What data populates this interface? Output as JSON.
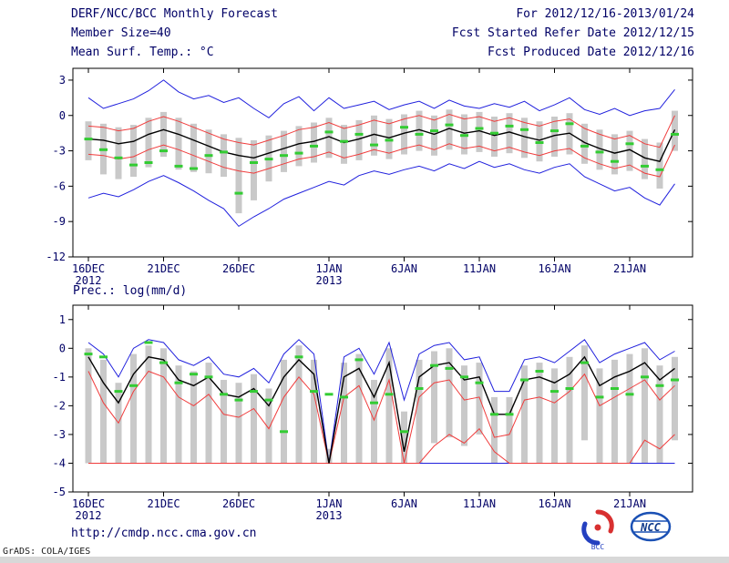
{
  "page": {
    "background": "#ffffff",
    "text_color": "#000066"
  },
  "header": {
    "title": "DERF/NCC/BCC Monthly Forecast",
    "member_size": "Member Size=40",
    "for_range": "For 2012/12/16-2013/01/24",
    "refer_date": "Fcst Started Refer Date 2012/12/15",
    "produced_date": "Fcst Produced Date 2012/12/16"
  },
  "footer": {
    "url": "http://cmdp.ncc.cma.gov.cn",
    "grads_credit": "GrADS: COLA/IGES",
    "logos": [
      {
        "name": "bcc-logo",
        "label": "BCC"
      },
      {
        "name": "ncc-logo",
        "label": "NCC"
      }
    ]
  },
  "colors": {
    "ensemble_max_min": "#2020dd",
    "bounds": "#f03c3c",
    "mean": "#000000",
    "observation": "#33cc33",
    "spread_bar": "#c9c9c9",
    "frame": "#000000"
  },
  "chart_data": [
    {
      "type": "line",
      "title": "Mean Surf. Temp.: °C",
      "x_start": "16DEC2012",
      "x_end": "24JAN2013",
      "n_points": 40,
      "ylim": [
        -12,
        4
      ],
      "y_ticks": [
        3,
        0,
        -3,
        -6,
        -9,
        -12
      ],
      "x_ticks": [
        {
          "i": 0,
          "label": "16DEC",
          "year": "2012"
        },
        {
          "i": 5,
          "label": "21DEC"
        },
        {
          "i": 10,
          "label": "26DEC"
        },
        {
          "i": 16,
          "label": "1JAN",
          "year": "2013"
        },
        {
          "i": 21,
          "label": "6JAN"
        },
        {
          "i": 26,
          "label": "11JAN"
        },
        {
          "i": 31,
          "label": "16JAN"
        },
        {
          "i": 36,
          "label": "21JAN"
        }
      ],
      "series": [
        {
          "name": "ensemble-max",
          "color": "#2020dd",
          "width": 1,
          "values": [
            1.5,
            0.6,
            1.0,
            1.4,
            2.1,
            3.0,
            2.0,
            1.4,
            1.7,
            1.1,
            1.5,
            0.6,
            -0.2,
            1.0,
            1.6,
            0.4,
            1.5,
            0.6,
            0.9,
            1.2,
            0.5,
            0.9,
            1.2,
            0.6,
            1.3,
            0.8,
            0.6,
            1.0,
            0.7,
            1.2,
            0.4,
            0.9,
            1.5,
            0.5,
            0.1,
            0.6,
            0.0,
            0.4,
            0.6,
            2.2
          ]
        },
        {
          "name": "ensemble-min",
          "color": "#2020dd",
          "width": 1,
          "values": [
            -7.0,
            -6.6,
            -6.9,
            -6.3,
            -5.6,
            -5.1,
            -5.7,
            -6.4,
            -7.2,
            -7.9,
            -9.4,
            -8.6,
            -7.9,
            -7.1,
            -6.6,
            -6.1,
            -5.6,
            -5.9,
            -5.1,
            -4.7,
            -5.0,
            -4.6,
            -4.3,
            -4.7,
            -4.1,
            -4.5,
            -3.9,
            -4.4,
            -4.1,
            -4.6,
            -4.9,
            -4.4,
            -4.1,
            -5.2,
            -5.8,
            -6.4,
            -6.1,
            -7.0,
            -7.6,
            -5.8
          ]
        },
        {
          "name": "upper-bound",
          "color": "#f03c3c",
          "width": 1,
          "values": [
            -0.9,
            -1.0,
            -1.3,
            -1.1,
            -0.5,
            -0.1,
            -0.5,
            -1.0,
            -1.5,
            -2.0,
            -2.3,
            -2.5,
            -2.1,
            -1.7,
            -1.2,
            -1.0,
            -0.6,
            -1.1,
            -0.8,
            -0.4,
            -0.7,
            -0.3,
            0.0,
            -0.4,
            0.1,
            -0.3,
            -0.1,
            -0.5,
            -0.2,
            -0.6,
            -0.9,
            -0.5,
            -0.3,
            -1.1,
            -1.6,
            -2.0,
            -1.7,
            -2.4,
            -2.7,
            0.0
          ]
        },
        {
          "name": "lower-bound",
          "color": "#f03c3c",
          "width": 1,
          "values": [
            -3.3,
            -3.4,
            -3.7,
            -3.5,
            -2.9,
            -2.5,
            -2.9,
            -3.4,
            -3.9,
            -4.4,
            -4.7,
            -4.9,
            -4.5,
            -4.1,
            -3.7,
            -3.5,
            -3.1,
            -3.6,
            -3.3,
            -2.9,
            -3.2,
            -2.8,
            -2.5,
            -2.9,
            -2.4,
            -2.8,
            -2.6,
            -3.0,
            -2.7,
            -3.1,
            -3.4,
            -3.0,
            -2.8,
            -3.6,
            -4.1,
            -4.5,
            -4.2,
            -4.9,
            -5.2,
            -2.5
          ]
        },
        {
          "name": "ensemble-mean",
          "color": "#000000",
          "width": 1.4,
          "values": [
            -2.0,
            -2.1,
            -2.4,
            -2.2,
            -1.6,
            -1.2,
            -1.6,
            -2.1,
            -2.6,
            -3.1,
            -3.4,
            -3.6,
            -3.2,
            -2.8,
            -2.4,
            -2.2,
            -1.8,
            -2.3,
            -2.0,
            -1.6,
            -1.9,
            -1.5,
            -1.2,
            -1.6,
            -1.1,
            -1.5,
            -1.3,
            -1.7,
            -1.4,
            -1.8,
            -2.1,
            -1.7,
            -1.5,
            -2.3,
            -2.8,
            -3.2,
            -2.9,
            -3.6,
            -3.9,
            -1.2
          ]
        }
      ],
      "obs": {
        "name": "observation",
        "color": "#33cc33",
        "values": [
          -2.0,
          -2.9,
          -3.6,
          -4.2,
          -4.0,
          -3.0,
          -4.3,
          -4.5,
          -3.4,
          -3.1,
          -6.6,
          -4.0,
          -3.7,
          -3.4,
          -3.2,
          -2.6,
          -1.4,
          -2.2,
          -1.6,
          -2.5,
          -2.1,
          -1.0,
          -1.6,
          -1.3,
          -0.8,
          -1.7,
          -1.1,
          -1.5,
          -0.9,
          -1.2,
          -2.3,
          -1.3,
          -0.7,
          -2.6,
          -3.1,
          -3.9,
          -2.4,
          -4.3,
          -4.6,
          -1.6
        ]
      },
      "bars": {
        "color": "#c9c9c9",
        "high": [
          -0.5,
          -0.7,
          -1.0,
          -0.8,
          -0.2,
          0.3,
          -0.2,
          -0.7,
          -1.2,
          -1.6,
          -1.9,
          -2.1,
          -1.7,
          -1.3,
          -0.9,
          -0.6,
          -0.2,
          -0.8,
          -0.4,
          0.0,
          -0.3,
          0.1,
          0.4,
          0.0,
          0.5,
          0.1,
          0.3,
          -0.1,
          0.2,
          -0.2,
          -0.5,
          -0.1,
          0.2,
          -0.7,
          -1.2,
          -1.6,
          -1.3,
          -2.0,
          -2.3,
          0.4
        ],
        "low": [
          -3.8,
          -5.0,
          -5.4,
          -5.2,
          -4.4,
          -3.5,
          -4.6,
          -4.8,
          -4.9,
          -5.2,
          -8.3,
          -7.2,
          -5.6,
          -4.8,
          -4.3,
          -4.0,
          -3.6,
          -4.1,
          -3.8,
          -3.4,
          -3.7,
          -3.3,
          -3.0,
          -3.4,
          -2.9,
          -3.3,
          -3.1,
          -3.5,
          -3.2,
          -3.6,
          -3.9,
          -3.5,
          -3.3,
          -4.1,
          -4.6,
          -5.0,
          -4.7,
          -5.4,
          -6.2,
          -3.0
        ]
      }
    },
    {
      "type": "line",
      "title": "Prec.: log(mm/d)",
      "x_start": "16DEC2012",
      "x_end": "24JAN2013",
      "n_points": 40,
      "ylim": [
        -5,
        1.5
      ],
      "y_ticks": [
        1,
        0,
        -1,
        -2,
        -3,
        -4,
        -5
      ],
      "x_ticks": [
        {
          "i": 0,
          "label": "16DEC",
          "year": "2012"
        },
        {
          "i": 5,
          "label": "21DEC"
        },
        {
          "i": 10,
          "label": "26DEC"
        },
        {
          "i": 16,
          "label": "1JAN",
          "year": "2013"
        },
        {
          "i": 21,
          "label": "6JAN"
        },
        {
          "i": 26,
          "label": "11JAN"
        },
        {
          "i": 31,
          "label": "16JAN"
        },
        {
          "i": 36,
          "label": "21JAN"
        }
      ],
      "series": [
        {
          "name": "ensemble-max",
          "color": "#2020dd",
          "width": 1,
          "values": [
            0.2,
            -0.2,
            -1.0,
            0.0,
            0.3,
            0.2,
            -0.4,
            -0.6,
            -0.3,
            -0.9,
            -1.0,
            -0.7,
            -1.2,
            -0.2,
            0.3,
            -0.2,
            -4.0,
            -0.3,
            0.0,
            -0.9,
            0.2,
            -1.8,
            -0.2,
            0.1,
            0.2,
            -0.4,
            -0.3,
            -1.5,
            -1.5,
            -0.4,
            -0.3,
            -0.5,
            -0.1,
            0.3,
            -0.5,
            -0.2,
            0.0,
            0.2,
            -0.4,
            -0.1
          ]
        },
        {
          "name": "ensemble-min",
          "color": "#2020dd",
          "width": 1,
          "values": [
            -4.0,
            -4.0,
            -4.0,
            -4.0,
            -4.0,
            -4.0,
            -4.0,
            -4.0,
            -4.0,
            -4.0,
            -4.0,
            -4.0,
            -4.0,
            -4.0,
            -4.0,
            -4.0,
            -4.0,
            -4.0,
            -4.0,
            -4.0,
            -4.0,
            -4.0,
            -4.0,
            -4.0,
            -4.0,
            -4.0,
            -4.0,
            -4.0,
            -4.0,
            -4.0,
            -4.0,
            -4.0,
            -4.0,
            -4.0,
            -4.0,
            -4.0,
            -4.0,
            -4.0,
            -4.0,
            -4.0
          ]
        },
        {
          "name": "upper-bound",
          "color": "#f03c3c",
          "width": 1,
          "values": [
            -0.8,
            -1.9,
            -2.6,
            -1.5,
            -0.8,
            -1.0,
            -1.7,
            -2.0,
            -1.6,
            -2.3,
            -2.4,
            -2.1,
            -2.8,
            -1.7,
            -1.0,
            -1.6,
            -4.0,
            -1.7,
            -1.3,
            -2.5,
            -1.1,
            -4.0,
            -1.7,
            -1.2,
            -1.1,
            -1.8,
            -1.7,
            -3.1,
            -3.0,
            -1.8,
            -1.7,
            -1.9,
            -1.5,
            -0.9,
            -2.0,
            -1.7,
            -1.4,
            -1.1,
            -1.8,
            -1.3
          ]
        },
        {
          "name": "lower-bound",
          "color": "#f03c3c",
          "width": 1,
          "values": [
            -4.0,
            -4.0,
            -4.0,
            -4.0,
            -4.0,
            -4.0,
            -4.0,
            -4.0,
            -4.0,
            -4.0,
            -4.0,
            -4.0,
            -4.0,
            -4.0,
            -4.0,
            -4.0,
            -4.0,
            -4.0,
            -4.0,
            -4.0,
            -4.0,
            -4.0,
            -4.0,
            -3.4,
            -3.0,
            -3.3,
            -2.8,
            -3.6,
            -4.0,
            -4.0,
            -4.0,
            -4.0,
            -4.0,
            -4.0,
            -4.0,
            -4.0,
            -4.0,
            -3.2,
            -3.5,
            -3.0
          ]
        },
        {
          "name": "ensemble-mean",
          "color": "#000000",
          "width": 1.4,
          "values": [
            -0.3,
            -1.2,
            -1.9,
            -0.9,
            -0.3,
            -0.4,
            -1.1,
            -1.3,
            -1.0,
            -1.6,
            -1.7,
            -1.4,
            -2.0,
            -1.0,
            -0.4,
            -0.9,
            -4.0,
            -1.0,
            -0.7,
            -1.7,
            -0.5,
            -3.6,
            -1.0,
            -0.6,
            -0.5,
            -1.1,
            -1.0,
            -2.3,
            -2.3,
            -1.1,
            -1.0,
            -1.2,
            -0.9,
            -0.3,
            -1.3,
            -1.0,
            -0.8,
            -0.5,
            -1.1,
            -0.7
          ]
        }
      ],
      "obs": {
        "name": "observation",
        "color": "#33cc33",
        "values": [
          -0.2,
          -0.3,
          -1.5,
          -1.3,
          0.2,
          -0.5,
          -1.2,
          -0.9,
          -1.0,
          -1.6,
          -1.8,
          -1.5,
          -1.8,
          -2.9,
          -0.3,
          -1.5,
          -1.6,
          -1.7,
          -0.4,
          -1.9,
          -1.6,
          -2.9,
          -1.4,
          -0.6,
          -0.7,
          -1.0,
          -1.2,
          -2.3,
          -2.3,
          -1.1,
          -0.8,
          -1.5,
          -1.4,
          -0.5,
          -1.7,
          -1.4,
          -1.6,
          -1.0,
          -1.3,
          -1.1
        ]
      },
      "bars": {
        "color": "#c9c9c9",
        "high": [
          0.0,
          -0.4,
          -1.2,
          -0.2,
          0.1,
          0.0,
          -0.6,
          -0.8,
          -0.5,
          -1.1,
          -1.2,
          -0.9,
          -1.4,
          -0.4,
          0.1,
          -0.4,
          -3.5,
          -0.5,
          -0.2,
          -1.1,
          0.0,
          -2.2,
          -0.4,
          -0.1,
          0.0,
          -0.6,
          -0.5,
          -1.7,
          -1.7,
          -0.6,
          -0.5,
          -0.7,
          -0.3,
          0.1,
          -0.7,
          -0.4,
          -0.2,
          0.0,
          -0.6,
          -0.3
        ],
        "low": [
          -4.0,
          -4.0,
          -4.0,
          -4.0,
          -4.0,
          -4.0,
          -4.0,
          -4.0,
          -4.0,
          -4.0,
          -4.0,
          -4.0,
          -4.0,
          -4.0,
          -4.0,
          -4.0,
          -4.0,
          -4.0,
          -4.0,
          -4.0,
          -4.0,
          -4.0,
          -4.0,
          -3.3,
          -3.1,
          -3.4,
          -3.0,
          -4.0,
          -4.0,
          -4.0,
          -4.0,
          -4.0,
          -4.0,
          -3.2,
          -4.0,
          -4.0,
          -4.0,
          -4.0,
          -4.0,
          -3.2
        ]
      }
    }
  ]
}
